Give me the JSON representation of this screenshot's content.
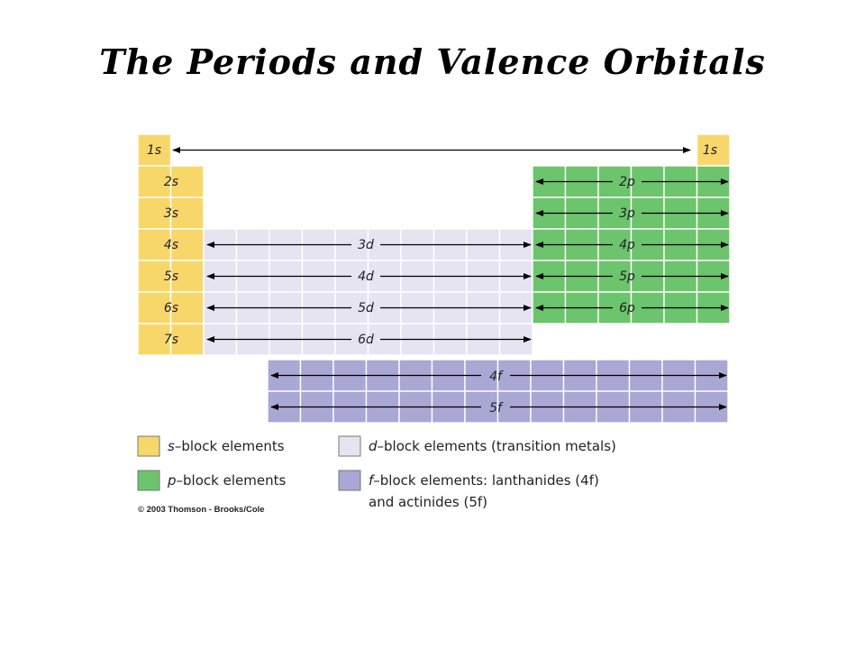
{
  "title": "The Periods and Valence Orbitals",
  "colors": {
    "s_block": "#f8d76a",
    "p_block": "#6cc46c",
    "d_block": "#e6e4f0",
    "f_block": "#a9a7d3"
  },
  "s_block": {
    "period1_left": "1s",
    "period1_right": "1s",
    "rows": [
      "2s",
      "3s",
      "4s",
      "5s",
      "6s",
      "7s"
    ]
  },
  "p_block": {
    "rows": [
      "2p",
      "3p",
      "4p",
      "5p",
      "6p"
    ]
  },
  "d_block": {
    "rows": [
      "3d",
      "4d",
      "5d",
      "6d"
    ]
  },
  "f_block": {
    "rows": [
      "4f",
      "5f"
    ]
  },
  "legend": {
    "s": {
      "symbol": "s",
      "text": "–block elements"
    },
    "p": {
      "symbol": "p",
      "text": "–block elements"
    },
    "d": {
      "symbol": "d",
      "text": "–block elements (transition metals)"
    },
    "f": {
      "symbol": "f",
      "text_line1": "–block elements: lanthanides (4f)",
      "text_line2": "and actinides (5f)"
    }
  },
  "copyright": "© 2003 Thomson - Brooks/Cole"
}
